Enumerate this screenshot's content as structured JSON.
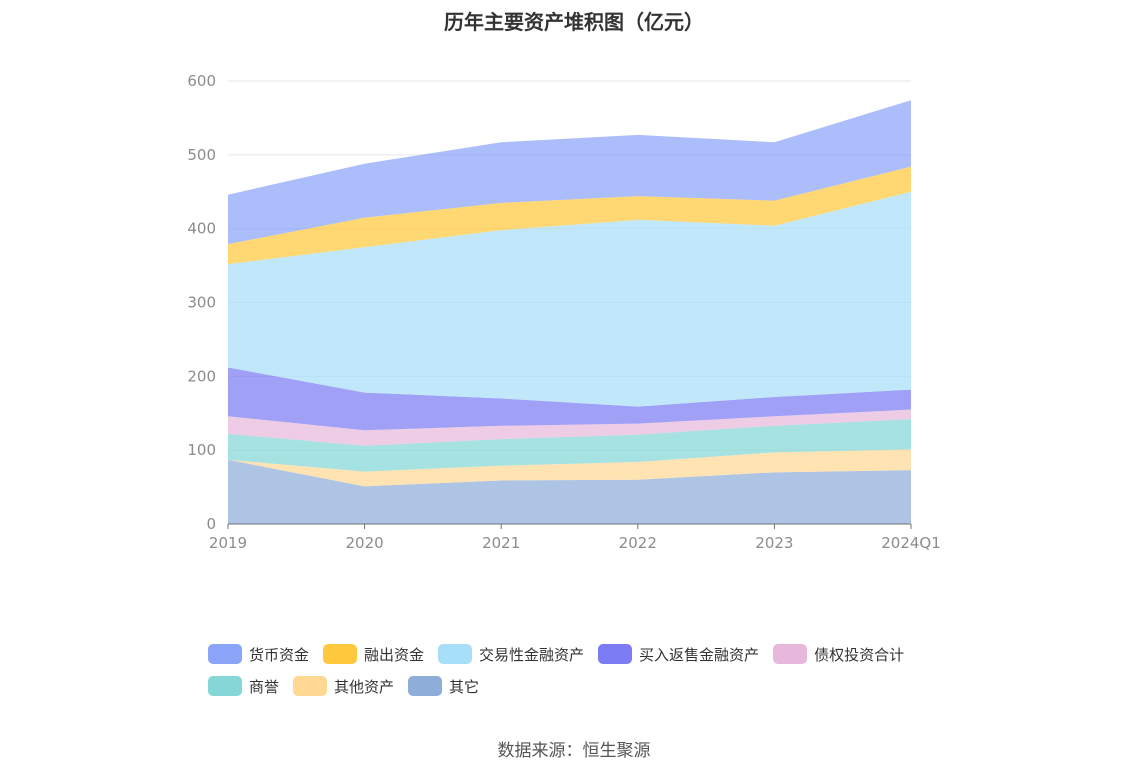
{
  "title": "历年主要资产堆积图（亿元）",
  "source": "数据来源：恒生聚源",
  "chart_data": {
    "type": "area",
    "stacked": true,
    "categories": [
      "2019",
      "2020",
      "2021",
      "2022",
      "2023",
      "2024Q1"
    ],
    "ylim": [
      0,
      600
    ],
    "yticks": [
      0,
      100,
      200,
      300,
      400,
      500,
      600
    ],
    "grid": true,
    "legend_position": "bottom",
    "series": [
      {
        "name": "其它",
        "color": "#8fadd9",
        "values": [
          87,
          51,
          59,
          60,
          70,
          73
        ]
      },
      {
        "name": "其他资产",
        "color": "#ffd894",
        "values": [
          0,
          20,
          20,
          24,
          27,
          28
        ]
      },
      {
        "name": "商誉",
        "color": "#84d7d6",
        "values": [
          35,
          35,
          36,
          37,
          36,
          41
        ]
      },
      {
        "name": "债权投资合计",
        "color": "#e8b8dc",
        "values": [
          24,
          21,
          18,
          15,
          13,
          13
        ]
      },
      {
        "name": "买入返售金融资产",
        "color": "#7b7cf3",
        "values": [
          66,
          51,
          37,
          23,
          26,
          27
        ]
      },
      {
        "name": "交易性金融资产",
        "color": "#a7dff8",
        "values": [
          140,
          197,
          228,
          253,
          232,
          268
        ]
      },
      {
        "name": "融出资金",
        "color": "#ffc83d",
        "values": [
          27,
          40,
          37,
          32,
          34,
          34
        ]
      },
      {
        "name": "货币资金",
        "color": "#8aa4f8",
        "values": [
          67,
          73,
          82,
          83,
          79,
          90
        ]
      }
    ]
  }
}
